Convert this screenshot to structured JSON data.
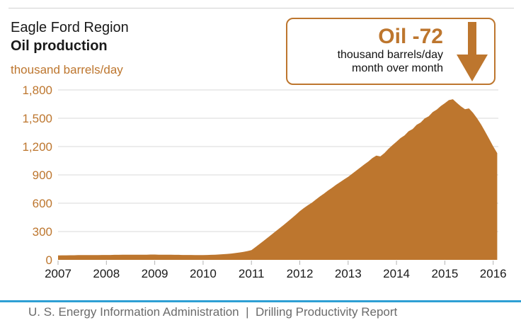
{
  "header": {
    "region": "Eagle Ford Region",
    "metric": "Oil production",
    "units": "thousand barrels/day"
  },
  "callout": {
    "headline": "Oil -72",
    "line1": "thousand barrels/day",
    "line2": "month over month",
    "arrow_icon": "down-arrow",
    "change_value": -72
  },
  "footer": {
    "text": "U. S. Energy Information Administration  |  Drilling Productivity Report"
  },
  "colors": {
    "accent_brown": "#bd762e",
    "title_black": "#1a1a1a",
    "grid_gray": "#d9d9d9",
    "tick_gray": "#b3b3b3",
    "axis_label_black": "#1a1a1a",
    "footer_blue": "#2e9fd4",
    "footer_text_gray": "#6b6b6b"
  },
  "chart_data": {
    "type": "area",
    "title": "Eagle Ford Region Oil production",
    "ylabel": "thousand barrels/day",
    "xlabel": "",
    "grid": "horizontal",
    "legend": "none",
    "ylim": [
      0,
      1800
    ],
    "x_start": "2007-01",
    "x_end": "2016-02",
    "x_interval": "monthly",
    "x_ticks": [
      2007,
      2008,
      2009,
      2010,
      2011,
      2012,
      2013,
      2014,
      2015,
      2016
    ],
    "y_tick_values": [
      0,
      300,
      600,
      900,
      1200,
      1500,
      1800
    ],
    "y_tick_labels": [
      "0",
      "300",
      "600",
      "900",
      "1,200",
      "1,500",
      "1,800"
    ],
    "area_color": "#bd762e",
    "peak": {
      "month": "2015-03",
      "value": 1702
    },
    "latest": {
      "month": "2016-02",
      "value": 1130
    },
    "latest_mom_change": -72,
    "series": [
      {
        "name": "Oil production (thousand barrels/day)",
        "values": [
          47,
          48,
          48,
          49,
          49,
          50,
          50,
          50,
          51,
          51,
          51,
          52,
          52,
          52,
          53,
          53,
          54,
          54,
          54,
          55,
          55,
          55,
          55,
          56,
          56,
          55,
          55,
          54,
          54,
          53,
          53,
          52,
          52,
          52,
          51,
          51,
          51,
          52,
          53,
          55,
          57,
          60,
          63,
          67,
          72,
          78,
          85,
          93,
          103,
          135,
          168,
          200,
          234,
          268,
          302,
          336,
          370,
          405,
          440,
          477,
          515,
          548,
          578,
          606,
          640,
          672,
          701,
          734,
          763,
          795,
          823,
          852,
          880,
          912,
          945,
          978,
          1010,
          1042,
          1078,
          1105,
          1096,
          1130,
          1175,
          1215,
          1252,
          1290,
          1318,
          1362,
          1385,
          1430,
          1455,
          1498,
          1520,
          1565,
          1592,
          1630,
          1660,
          1692,
          1702,
          1662,
          1625,
          1596,
          1604,
          1558,
          1500,
          1434,
          1360,
          1282,
          1202,
          1130
        ]
      }
    ]
  }
}
